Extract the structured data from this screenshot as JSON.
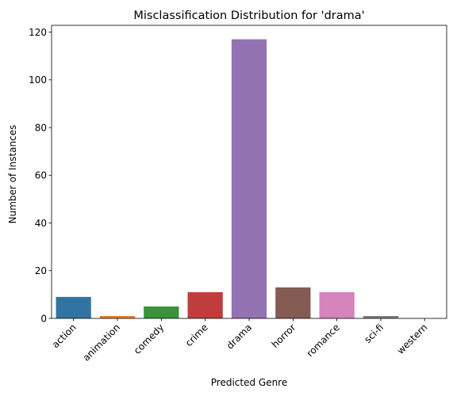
{
  "chart_data": {
    "type": "bar",
    "title": "Misclassification Distribution for 'drama'",
    "xlabel": "Predicted Genre",
    "ylabel": "Number of Instances",
    "categories": [
      "action",
      "animation",
      "comedy",
      "crime",
      "drama",
      "horror",
      "romance",
      "sci-fi",
      "western"
    ],
    "values": [
      9,
      1,
      5,
      11,
      117,
      13,
      11,
      1,
      0
    ],
    "colors": [
      "#3274a1",
      "#e1812c",
      "#3a923a",
      "#c03d3e",
      "#9372b2",
      "#845b53",
      "#d684bd",
      "#7f7f7f",
      "#a9aa35"
    ],
    "ylim": [
      0,
      122.85
    ],
    "yticks": [
      0,
      20,
      40,
      60,
      80,
      100,
      120
    ],
    "grid": false,
    "legend": "none"
  }
}
